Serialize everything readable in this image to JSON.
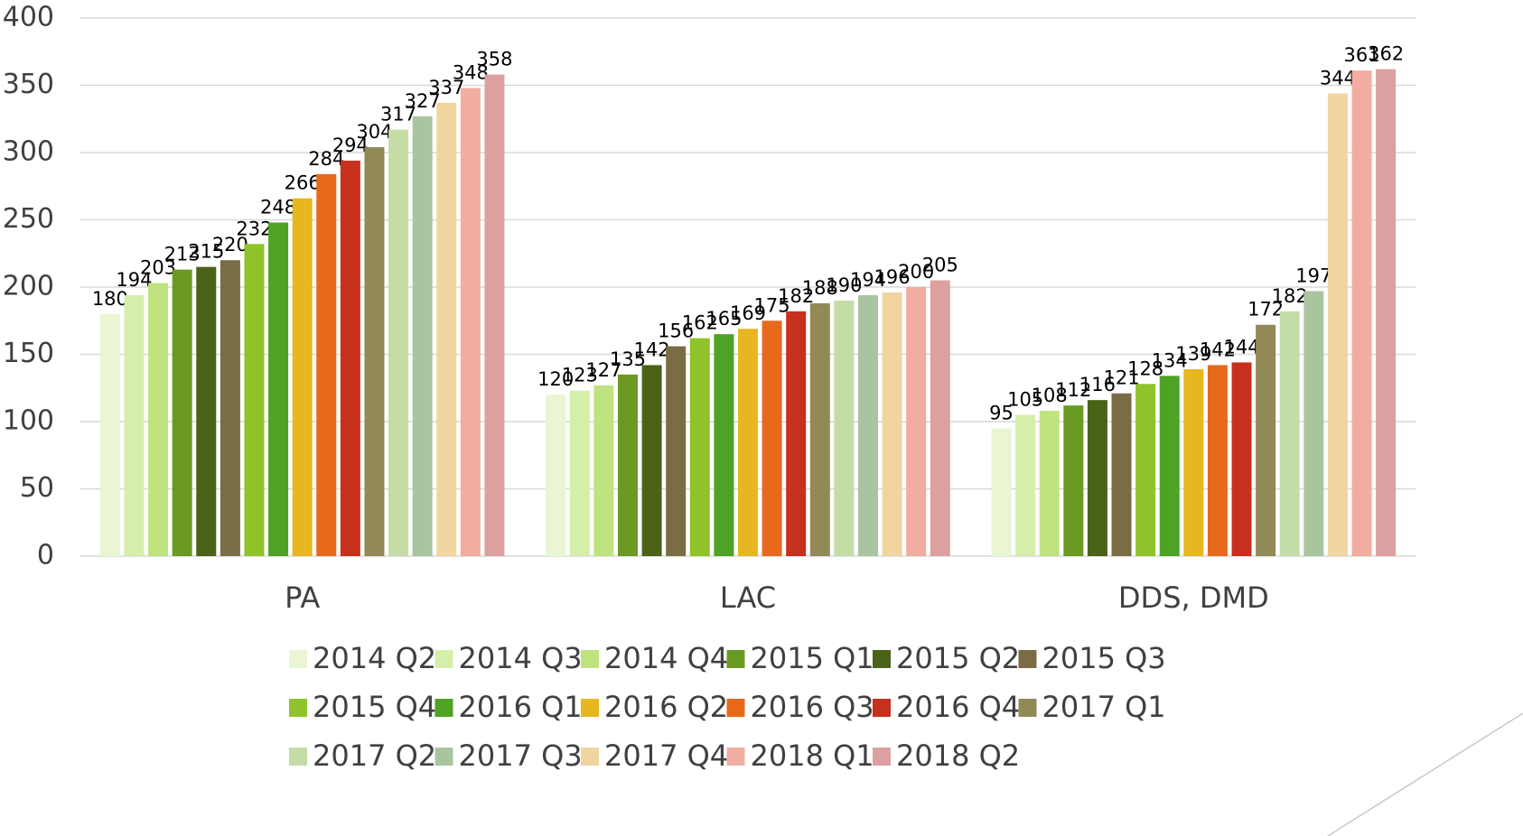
{
  "chart_data": {
    "type": "bar",
    "categories": [
      "PA",
      "LAC",
      "DDS, DMD"
    ],
    "ylim": [
      0,
      400
    ],
    "yticks": [
      0,
      50,
      100,
      150,
      200,
      250,
      300,
      350,
      400
    ],
    "grid": true,
    "series": [
      {
        "name": "2014 Q2",
        "color": "#e9f5d3",
        "values": [
          180,
          120,
          95
        ]
      },
      {
        "name": "2014 Q3",
        "color": "#d5efab",
        "values": [
          194,
          123,
          105
        ]
      },
      {
        "name": "2014 Q4",
        "color": "#bfe37e",
        "values": [
          203,
          127,
          108
        ]
      },
      {
        "name": "2015 Q1",
        "color": "#6b9a22",
        "values": [
          213,
          135,
          112
        ]
      },
      {
        "name": "2015 Q2",
        "color": "#4a6318",
        "values": [
          215,
          142,
          116
        ]
      },
      {
        "name": "2015 Q3",
        "color": "#7a6d45",
        "values": [
          220,
          156,
          121
        ]
      },
      {
        "name": "2015 Q4",
        "color": "#8fc32a",
        "values": [
          232,
          162,
          128
        ]
      },
      {
        "name": "2016 Q1",
        "color": "#4ea325",
        "values": [
          248,
          165,
          134
        ]
      },
      {
        "name": "2016 Q2",
        "color": "#e8b620",
        "values": [
          266,
          169,
          139
        ]
      },
      {
        "name": "2016 Q3",
        "color": "#e8691c",
        "values": [
          284,
          175,
          142
        ]
      },
      {
        "name": "2016 Q4",
        "color": "#c8301e",
        "values": [
          294,
          182,
          144
        ]
      },
      {
        "name": "2017 Q1",
        "color": "#918956",
        "values": [
          304,
          188,
          172
        ]
      },
      {
        "name": "2017 Q2",
        "color": "#c4dca6",
        "values": [
          317,
          190,
          182
        ]
      },
      {
        "name": "2017 Q3",
        "color": "#a9c5a0",
        "values": [
          327,
          194,
          197
        ]
      },
      {
        "name": "2017 Q4",
        "color": "#f0d5a0",
        "values": [
          337,
          196,
          344
        ]
      },
      {
        "name": "2018 Q1",
        "color": "#f0ada0",
        "values": [
          348,
          200,
          361
        ]
      },
      {
        "name": "2018 Q2",
        "color": "#dca0a0",
        "values": [
          358,
          205,
          362
        ]
      }
    ]
  }
}
